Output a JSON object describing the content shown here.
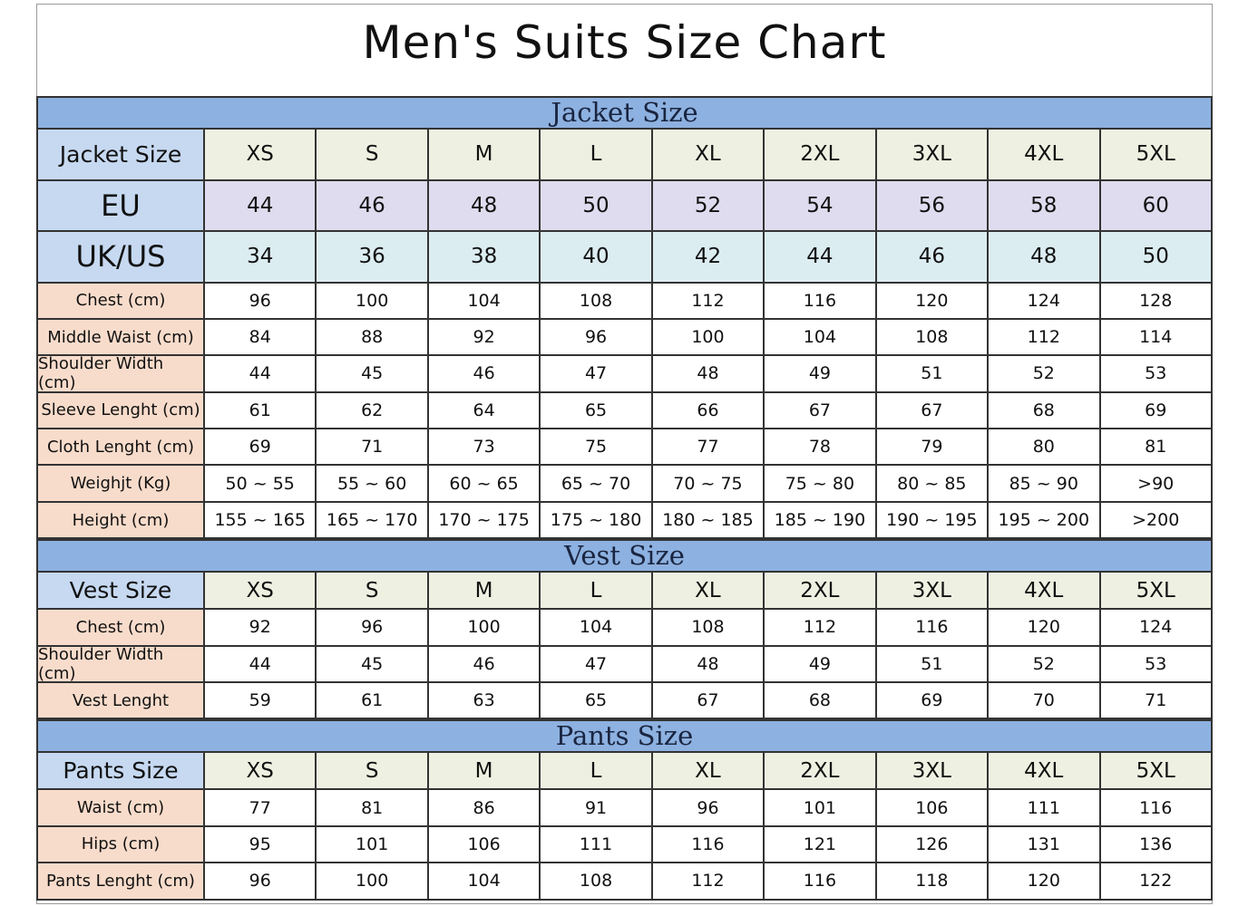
{
  "title": "Men's Suits Size Chart",
  "colors": {
    "band": "#8db1e0",
    "label_blue": "#c6d9f1",
    "label_peach": "#f8dccb",
    "size_row": "#eef0e1",
    "eu_row": "#dedcee",
    "us_row": "#dcedf2"
  },
  "sections": [
    {
      "name": "jacket",
      "title": "Jacket Size",
      "rows": [
        {
          "kind": "size",
          "label": "Jacket Size",
          "values": [
            "XS",
            "S",
            "M",
            "L",
            "XL",
            "2XL",
            "3XL",
            "4XL",
            "5XL"
          ]
        },
        {
          "kind": "eu",
          "label": "EU",
          "values": [
            "44",
            "46",
            "48",
            "50",
            "52",
            "54",
            "56",
            "58",
            "60"
          ]
        },
        {
          "kind": "us",
          "label": "UK/US",
          "values": [
            "34",
            "36",
            "38",
            "40",
            "42",
            "44",
            "46",
            "48",
            "50"
          ]
        },
        {
          "kind": "measure",
          "label": "Chest (cm)",
          "values": [
            "96",
            "100",
            "104",
            "108",
            "112",
            "116",
            "120",
            "124",
            "128"
          ]
        },
        {
          "kind": "measure",
          "label": "Middle Waist (cm)",
          "values": [
            "84",
            "88",
            "92",
            "96",
            "100",
            "104",
            "108",
            "112",
            "114"
          ]
        },
        {
          "kind": "measure",
          "label": "Shoulder Width (cm)",
          "values": [
            "44",
            "45",
            "46",
            "47",
            "48",
            "49",
            "51",
            "52",
            "53"
          ]
        },
        {
          "kind": "measure",
          "label": "Sleeve Lenght (cm)",
          "values": [
            "61",
            "62",
            "64",
            "65",
            "66",
            "67",
            "67",
            "68",
            "69"
          ]
        },
        {
          "kind": "measure",
          "label": "Cloth Lenght (cm)",
          "values": [
            "69",
            "71",
            "73",
            "75",
            "77",
            "78",
            "79",
            "80",
            "81"
          ]
        },
        {
          "kind": "measure",
          "label": "Weighjt (Kg)",
          "values": [
            "50 ~ 55",
            "55 ~ 60",
            "60 ~ 65",
            "65 ~ 70",
            "70 ~ 75",
            "75 ~ 80",
            "80 ~ 85",
            "85 ~ 90",
            ">90"
          ]
        },
        {
          "kind": "measure",
          "label": "Height (cm)",
          "values": [
            "155 ~ 165",
            "165 ~ 170",
            "170 ~ 175",
            "175 ~ 180",
            "180 ~ 185",
            "185 ~ 190",
            "190 ~ 195",
            "195 ~ 200",
            ">200"
          ]
        }
      ]
    },
    {
      "name": "vest",
      "title": "Vest Size",
      "rows": [
        {
          "kind": "size",
          "label": "Vest Size",
          "values": [
            "XS",
            "S",
            "M",
            "L",
            "XL",
            "2XL",
            "3XL",
            "4XL",
            "5XL"
          ]
        },
        {
          "kind": "measure",
          "label": "Chest (cm)",
          "values": [
            "92",
            "96",
            "100",
            "104",
            "108",
            "112",
            "116",
            "120",
            "124"
          ]
        },
        {
          "kind": "measure",
          "label": "Shoulder Width (cm)",
          "values": [
            "44",
            "45",
            "46",
            "47",
            "48",
            "49",
            "51",
            "52",
            "53"
          ]
        },
        {
          "kind": "measure",
          "label": "Vest Lenght",
          "values": [
            "59",
            "61",
            "63",
            "65",
            "67",
            "68",
            "69",
            "70",
            "71"
          ]
        }
      ]
    },
    {
      "name": "pants",
      "title": "Pants Size",
      "rows": [
        {
          "kind": "size",
          "label": "Pants Size",
          "values": [
            "XS",
            "S",
            "M",
            "L",
            "XL",
            "2XL",
            "3XL",
            "4XL",
            "5XL"
          ]
        },
        {
          "kind": "measure",
          "label": "Waist (cm)",
          "values": [
            "77",
            "81",
            "86",
            "91",
            "96",
            "101",
            "106",
            "111",
            "116"
          ]
        },
        {
          "kind": "measure",
          "label": "Hips (cm)",
          "values": [
            "95",
            "101",
            "106",
            "111",
            "116",
            "121",
            "126",
            "131",
            "136"
          ]
        },
        {
          "kind": "measure",
          "label": "Pants Lenght (cm)",
          "values": [
            "96",
            "100",
            "104",
            "108",
            "112",
            "116",
            "118",
            "120",
            "122"
          ]
        }
      ]
    }
  ]
}
